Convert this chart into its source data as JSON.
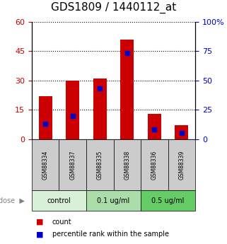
{
  "title": "GDS1809 / 1440112_at",
  "samples": [
    "GSM88334",
    "GSM88337",
    "GSM88335",
    "GSM88338",
    "GSM88336",
    "GSM88339"
  ],
  "bar_heights": [
    22,
    30,
    31,
    51,
    13,
    7
  ],
  "blue_marker_values": [
    8,
    12,
    26,
    44,
    5,
    3
  ],
  "left_ylim": [
    0,
    60
  ],
  "right_ylim": [
    0,
    100
  ],
  "left_yticks": [
    0,
    15,
    30,
    45,
    60
  ],
  "right_yticks": [
    0,
    25,
    50,
    75,
    100
  ],
  "right_yticklabels": [
    "0",
    "25",
    "50",
    "75",
    "100%"
  ],
  "bar_color": "#cc0000",
  "blue_color": "#0000cc",
  "legend_count": "count",
  "legend_percentile": "percentile rank within the sample",
  "bar_width": 0.5,
  "left_axis_color": "#cc0000",
  "right_axis_color": "#0000cc",
  "bg_sample_row": "#cccccc",
  "bg_dose_colors": [
    "#d8f0d8",
    "#aaddaa",
    "#66cc66"
  ],
  "dose_labels": [
    "control",
    "0.1 ug/ml",
    "0.5 ug/ml"
  ],
  "group_starts": [
    0,
    2,
    4
  ],
  "group_sizes": [
    2,
    2,
    2
  ]
}
